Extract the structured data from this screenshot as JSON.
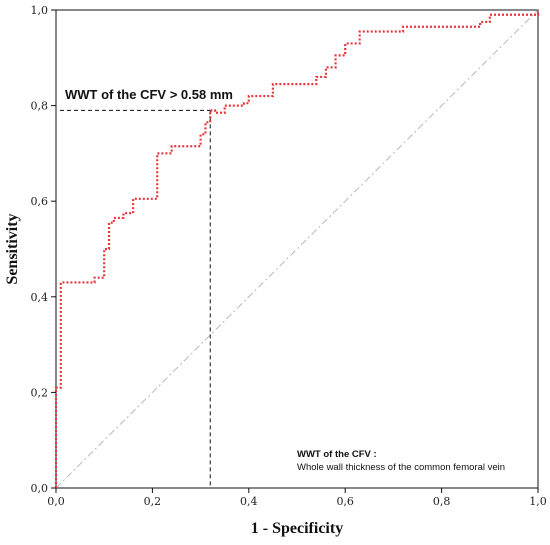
{
  "chart_data": {
    "type": "line",
    "title": "",
    "xlabel": "1 - Specificity",
    "ylabel": "Sensitivity",
    "xlim": [
      0,
      1
    ],
    "ylim": [
      0,
      1
    ],
    "x_ticks": [
      "0,0",
      "0,2",
      "0,4",
      "0,6",
      "0,8",
      "1,0"
    ],
    "y_ticks": [
      "0,0",
      "0,2",
      "0,4",
      "0,6",
      "0,8",
      "1,0"
    ],
    "grid": false,
    "series": [
      {
        "color": "#e8363c",
        "style": "dotted",
        "x": [
          0.0,
          0.0,
          0.01,
          0.01,
          0.02,
          0.08,
          0.08,
          0.1,
          0.1,
          0.11,
          0.11,
          0.12,
          0.12,
          0.14,
          0.14,
          0.16,
          0.16,
          0.18,
          0.18,
          0.21,
          0.21,
          0.24,
          0.24,
          0.3,
          0.3,
          0.31,
          0.31,
          0.32,
          0.32,
          0.33,
          0.33,
          0.35,
          0.35,
          0.37,
          0.37,
          0.39,
          0.39,
          0.4,
          0.4,
          0.42,
          0.42,
          0.45,
          0.45,
          0.54,
          0.54,
          0.56,
          0.56,
          0.58,
          0.58,
          0.59,
          0.59,
          0.6,
          0.6,
          0.63,
          0.63,
          0.64,
          0.64,
          0.72,
          0.72,
          0.88,
          0.88,
          0.9,
          0.9,
          0.95,
          0.95,
          1.0,
          1.0
        ],
        "y": [
          0.0,
          0.21,
          0.21,
          0.43,
          0.43,
          0.43,
          0.44,
          0.44,
          0.5,
          0.5,
          0.555,
          0.555,
          0.565,
          0.565,
          0.575,
          0.575,
          0.605,
          0.605,
          0.605,
          0.605,
          0.7,
          0.7,
          0.715,
          0.715,
          0.74,
          0.74,
          0.765,
          0.765,
          0.79,
          0.79,
          0.785,
          0.785,
          0.8,
          0.8,
          0.8,
          0.8,
          0.805,
          0.805,
          0.82,
          0.82,
          0.82,
          0.82,
          0.845,
          0.845,
          0.86,
          0.86,
          0.88,
          0.88,
          0.905,
          0.905,
          0.905,
          0.905,
          0.93,
          0.93,
          0.955,
          0.955,
          0.955,
          0.955,
          0.965,
          0.965,
          0.975,
          0.975,
          0.99,
          0.99,
          0.99,
          0.99,
          1.0
        ]
      }
    ],
    "reference_line": {
      "x": [
        0,
        1
      ],
      "y": [
        0,
        1
      ],
      "color": "#b8b8b8",
      "style": "dash-dot"
    },
    "cutoff": {
      "x": 0.32,
      "y": 0.79,
      "label": "WWT of the CFV > 0.58 mm"
    },
    "note": {
      "title": "WWT of the CFV :",
      "text": "Whole wall thickness of the common femoral vein"
    }
  }
}
